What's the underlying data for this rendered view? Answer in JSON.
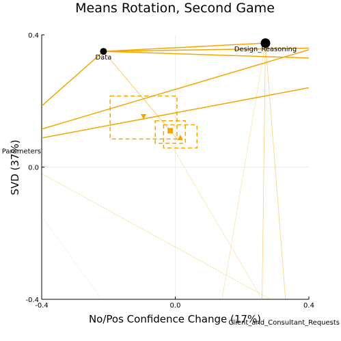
{
  "chart_data": {
    "type": "scatter",
    "title": "Means Rotation, Second Game",
    "xlabel": "No/Pos Confidence Change (17%)",
    "ylabel": "SVD (37%)",
    "xlim": [
      -0.4,
      0.4
    ],
    "ylim": [
      -0.4,
      0.4
    ],
    "xticks": [
      "-0.4",
      "0.0",
      "0.4"
    ],
    "yticks": [
      "-0.4",
      "0.0",
      "0.4"
    ],
    "grid": true,
    "legend": "none",
    "colors": {
      "accent": "#f5a500",
      "node": "#000000",
      "grid": "#eeeeee"
    },
    "nodes": [
      {
        "label": "Data",
        "x": -0.215,
        "y": 0.35,
        "size": "medium"
      },
      {
        "label": "Design_Reasoning",
        "x": 0.27,
        "y": 0.375,
        "size": "large"
      },
      {
        "label": "Parameters",
        "x": -0.52,
        "y": 0.05,
        "size": "hidden"
      },
      {
        "label": "Client_and_Consultant_Requests",
        "x": 0.5,
        "y": -0.465,
        "size": "hidden"
      }
    ],
    "means": [
      {
        "marker": "triangle-down",
        "x": -0.095,
        "y": 0.152,
        "box": {
          "x0": -0.195,
          "x1": 0.005,
          "y0": 0.085,
          "y1": 0.215
        }
      },
      {
        "marker": "square",
        "x": -0.015,
        "y": 0.11,
        "box": {
          "x0": -0.06,
          "x1": 0.03,
          "y0": 0.072,
          "y1": 0.14
        }
      },
      {
        "marker": "triangle-up",
        "x": 0.015,
        "y": 0.09,
        "box": {
          "x0": -0.035,
          "x1": 0.065,
          "y0": 0.058,
          "y1": 0.128
        }
      }
    ],
    "links": [
      {
        "x": [
          -0.215,
          0.27
        ],
        "y": [
          0.35,
          0.375
        ],
        "w": 1.5,
        "o": 1
      },
      {
        "x": [
          -0.215,
          0.4
        ],
        "y": [
          0.35,
          0.33
        ],
        "w": 1.5,
        "o": 1
      },
      {
        "x": [
          -0.215,
          0.4
        ],
        "y": [
          0.35,
          0.36
        ],
        "w": 1.5,
        "o": 1
      },
      {
        "x": [
          -0.215,
          -0.4
        ],
        "y": [
          0.35,
          0.185
        ],
        "w": 1.5,
        "o": 1
      },
      {
        "x": [
          -0.4,
          0.4
        ],
        "y": [
          0.115,
          0.355
        ],
        "w": 1.5,
        "o": 1
      },
      {
        "x": [
          -0.4,
          0.4
        ],
        "y": [
          0.088,
          0.24
        ],
        "w": 1.5,
        "o": 1
      },
      {
        "x": [
          -0.215,
          0.01
        ],
        "y": [
          0.35,
          0.08
        ],
        "w": 0.8,
        "o": 0.7
      },
      {
        "x": [
          0.27,
          0.26
        ],
        "y": [
          0.375,
          -0.4
        ],
        "w": 0.8,
        "o": 0.5
      },
      {
        "x": [
          0.27,
          0.33
        ],
        "y": [
          0.375,
          -0.4
        ],
        "w": 0.8,
        "o": 0.5
      },
      {
        "x": [
          0.27,
          0.14
        ],
        "y": [
          0.375,
          -0.4
        ],
        "w": 0.6,
        "o": 0.4
      },
      {
        "x": [
          -0.4,
          0.285
        ],
        "y": [
          -0.02,
          -0.4
        ],
        "w": 0.6,
        "o": 0.45
      },
      {
        "x": [
          -0.4,
          -0.22
        ],
        "y": [
          -0.15,
          -0.4
        ],
        "w": 0.5,
        "o": 0.3
      },
      {
        "x": [
          -0.02,
          0.26
        ],
        "y": [
          0.08,
          -0.4
        ],
        "w": 0.6,
        "o": 0.4
      }
    ]
  }
}
